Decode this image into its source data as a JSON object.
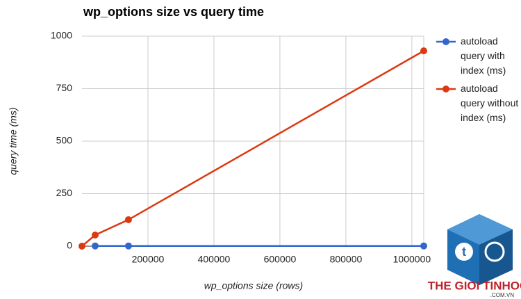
{
  "chart_data": {
    "type": "line",
    "title": "wp_options size vs query time",
    "x_label": "wp_options size (rows)",
    "y_label": "query time (ms)",
    "x": [
      0,
      40000,
      141000,
      1036000
    ],
    "series": [
      {
        "name": "autoload query with index (ms)",
        "color": "#3366cc",
        "values": [
          null,
          1,
          1,
          1
        ]
      },
      {
        "name": "autoload query without index (ms)",
        "color": "#dc3912",
        "values": [
          0,
          53,
          126,
          930
        ]
      }
    ],
    "xlim": [
      0,
      1036000
    ],
    "ylim": [
      0,
      1000
    ],
    "xticks": [
      200000,
      400000,
      600000,
      800000,
      1000000
    ],
    "yticks": [
      0,
      250,
      500,
      750,
      1000
    ],
    "grid": true,
    "legend": "right"
  },
  "watermark": {
    "brand": "THE GIOI TINHOC",
    "domain": ".COM.VN"
  }
}
